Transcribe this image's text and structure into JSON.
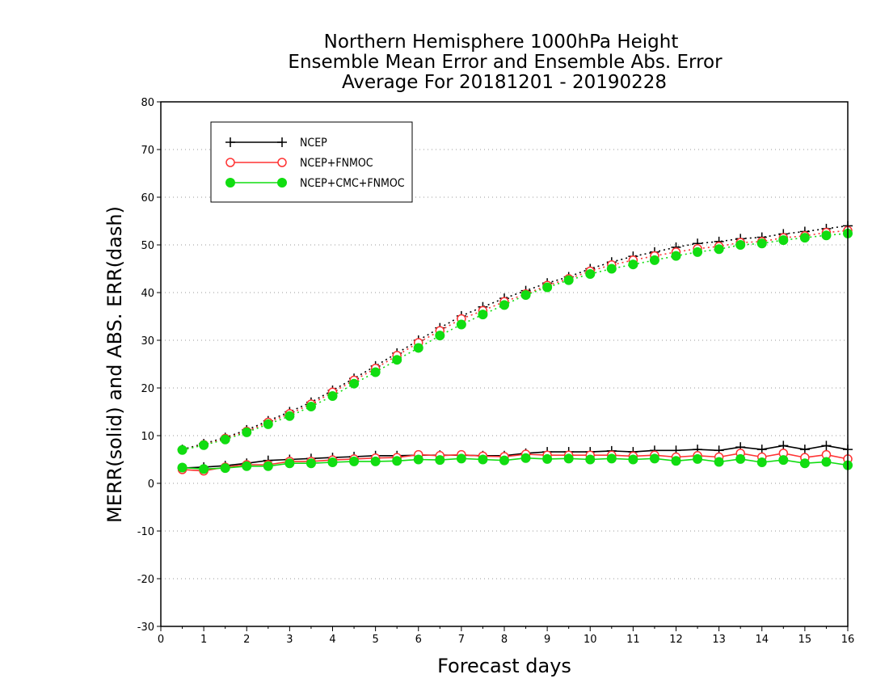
{
  "chart_data": {
    "type": "line",
    "title_lines": [
      "Northern Hemisphere 1000hPa Height",
      "Ensemble Mean Error and Ensemble Abs. Error",
      "Average For 20181201 - 20190228"
    ],
    "xlabel": "Forecast days",
    "ylabel": "MERR(solid) and ABS. ERR(dash)",
    "xlim": [
      0,
      16
    ],
    "ylim": [
      -30,
      80
    ],
    "xticks": [
      0,
      1,
      2,
      3,
      4,
      5,
      6,
      7,
      8,
      9,
      10,
      11,
      12,
      13,
      14,
      15,
      16
    ],
    "yticks": [
      -30,
      -20,
      -10,
      0,
      10,
      20,
      30,
      40,
      50,
      60,
      70,
      80
    ],
    "grid": "horizontal dotted",
    "legend_position": "top-left",
    "x": [
      0.5,
      1,
      1.5,
      2,
      2.5,
      3,
      3.5,
      4,
      4.5,
      5,
      5.5,
      6,
      6.5,
      7,
      7.5,
      8,
      8.5,
      9,
      9.5,
      10,
      10.5,
      11,
      11.5,
      12,
      12.5,
      13,
      13.5,
      14,
      14.5,
      15,
      15.5,
      16
    ],
    "series": [
      {
        "name": "NCEP",
        "color": "#000000",
        "marker": "plus",
        "merr": [
          3.2,
          3.4,
          3.7,
          4.2,
          4.8,
          5.0,
          5.2,
          5.4,
          5.6,
          5.8,
          5.8,
          5.9,
          5.9,
          5.9,
          5.8,
          5.8,
          6.3,
          6.6,
          6.6,
          6.6,
          6.8,
          6.6,
          6.9,
          6.9,
          7.1,
          6.9,
          7.6,
          7.1,
          7.9,
          7.1,
          7.9,
          7.1
        ],
        "abs_err": [
          7.1,
          8.3,
          9.6,
          11.2,
          13.1,
          15.0,
          17.0,
          19.5,
          22.0,
          24.6,
          27.3,
          30.0,
          32.6,
          35.1,
          37.0,
          38.8,
          40.4,
          42.0,
          43.3,
          45.0,
          46.4,
          47.6,
          48.5,
          49.5,
          50.3,
          50.7,
          51.3,
          51.6,
          52.3,
          52.8,
          53.4,
          54.0
        ]
      },
      {
        "name": "NCEP+FNMOC",
        "color": "#ff3333",
        "marker": "open-circle",
        "merr": [
          2.9,
          2.6,
          3.4,
          3.9,
          3.9,
          4.6,
          4.6,
          4.9,
          5.1,
          5.3,
          5.4,
          6.0,
          5.8,
          6.0,
          5.7,
          5.6,
          6.1,
          5.9,
          5.9,
          5.9,
          5.9,
          5.7,
          5.9,
          5.5,
          5.8,
          5.5,
          6.3,
          5.5,
          6.3,
          5.4,
          6.0,
          5.1
        ],
        "abs_err": [
          7.0,
          8.1,
          9.4,
          10.9,
          12.8,
          14.6,
          16.6,
          19.1,
          21.6,
          24.1,
          26.8,
          29.5,
          32.0,
          34.5,
          36.2,
          38.1,
          39.7,
          41.5,
          42.9,
          44.5,
          45.8,
          46.8,
          47.7,
          48.5,
          49.2,
          49.7,
          50.5,
          50.7,
          51.5,
          51.9,
          52.6,
          53.0
        ]
      },
      {
        "name": "NCEP+CMC+FNMOC",
        "color": "#11dd11",
        "marker": "filled-circle",
        "merr": [
          3.3,
          3.0,
          3.2,
          3.6,
          3.6,
          4.2,
          4.2,
          4.4,
          4.6,
          4.6,
          4.7,
          5.0,
          4.9,
          5.2,
          5.0,
          4.8,
          5.3,
          5.1,
          5.2,
          5.0,
          5.2,
          5.0,
          5.2,
          4.7,
          5.1,
          4.5,
          5.1,
          4.4,
          4.9,
          4.2,
          4.5,
          3.8
        ],
        "abs_err": [
          7.0,
          8.0,
          9.2,
          10.7,
          12.4,
          14.1,
          16.1,
          18.3,
          20.9,
          23.3,
          25.9,
          28.4,
          31.0,
          33.3,
          35.4,
          37.4,
          39.5,
          41.1,
          42.6,
          43.9,
          45.0,
          45.9,
          46.8,
          47.7,
          48.5,
          49.1,
          50.0,
          50.3,
          51.0,
          51.5,
          52.0,
          52.4
        ]
      }
    ]
  }
}
